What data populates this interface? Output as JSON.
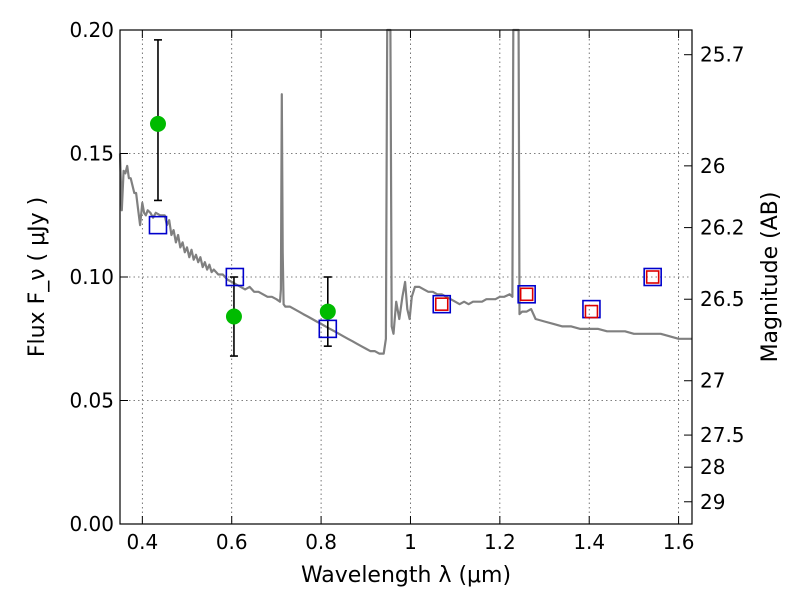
{
  "chart_data": {
    "type": "scatter",
    "xlabel": "Wavelength  λ (μm)",
    "ylabel_left": "Flux  F_ν  ( μJy )",
    "ylabel_right": "Magnitude (AB)",
    "xlim": [
      0.35,
      1.63
    ],
    "ylim": [
      0.0,
      0.2
    ],
    "grid": true,
    "x_ticks": [
      0.4,
      0.6,
      0.8,
      1.0,
      1.2,
      1.4,
      1.6
    ],
    "x_tick_labels": [
      "0.4",
      "0.6",
      "0.8",
      "1",
      "1.2",
      "1.4",
      "1.6"
    ],
    "y_ticks": [
      0.0,
      0.05,
      0.1,
      0.15,
      0.2
    ],
    "y_tick_labels": [
      "0.00",
      "0.05",
      "0.10",
      "0.15",
      "0.20"
    ],
    "right_ticks": [
      {
        "mag": "25.7",
        "flux": 0.19
      },
      {
        "mag": "26",
        "flux": 0.145
      },
      {
        "mag": "26.2",
        "flux": 0.12
      },
      {
        "mag": "26.5",
        "flux": 0.091
      },
      {
        "mag": "27",
        "flux": 0.058
      },
      {
        "mag": "27.5",
        "flux": 0.036
      },
      {
        "mag": "28",
        "flux": 0.023
      },
      {
        "mag": "29",
        "flux": 0.009
      }
    ],
    "series": [
      {
        "name": "model_sed",
        "kind": "line",
        "color": "#808080",
        "points": [
          [
            0.35,
            0.15
          ],
          [
            0.354,
            0.127
          ],
          [
            0.358,
            0.143
          ],
          [
            0.362,
            0.142
          ],
          [
            0.366,
            0.145
          ],
          [
            0.37,
            0.14
          ],
          [
            0.374,
            0.14
          ],
          [
            0.378,
            0.137
          ],
          [
            0.382,
            0.134
          ],
          [
            0.386,
            0.134
          ],
          [
            0.39,
            0.128
          ],
          [
            0.395,
            0.121
          ],
          [
            0.4,
            0.13
          ],
          [
            0.404,
            0.126
          ],
          [
            0.408,
            0.125
          ],
          [
            0.412,
            0.127
          ],
          [
            0.418,
            0.126
          ],
          [
            0.424,
            0.124
          ],
          [
            0.43,
            0.126
          ],
          [
            0.44,
            0.125
          ],
          [
            0.45,
            0.125
          ],
          [
            0.455,
            0.121
          ],
          [
            0.46,
            0.123
          ],
          [
            0.465,
            0.117
          ],
          [
            0.47,
            0.119
          ],
          [
            0.475,
            0.114
          ],
          [
            0.48,
            0.117
          ],
          [
            0.485,
            0.112
          ],
          [
            0.49,
            0.114
          ],
          [
            0.495,
            0.11
          ],
          [
            0.5,
            0.112
          ],
          [
            0.505,
            0.108
          ],
          [
            0.51,
            0.111
          ],
          [
            0.515,
            0.107
          ],
          [
            0.52,
            0.109
          ],
          [
            0.525,
            0.106
          ],
          [
            0.53,
            0.108
          ],
          [
            0.535,
            0.104
          ],
          [
            0.54,
            0.106
          ],
          [
            0.545,
            0.103
          ],
          [
            0.55,
            0.105
          ],
          [
            0.555,
            0.102
          ],
          [
            0.56,
            0.103
          ],
          [
            0.57,
            0.101
          ],
          [
            0.58,
            0.101
          ],
          [
            0.59,
            0.099
          ],
          [
            0.6,
            0.098
          ],
          [
            0.61,
            0.097
          ],
          [
            0.62,
            0.096
          ],
          [
            0.63,
            0.095
          ],
          [
            0.64,
            0.096
          ],
          [
            0.65,
            0.094
          ],
          [
            0.66,
            0.094
          ],
          [
            0.67,
            0.093
          ],
          [
            0.68,
            0.092
          ],
          [
            0.69,
            0.092
          ],
          [
            0.7,
            0.091
          ],
          [
            0.708,
            0.09
          ],
          [
            0.71,
            0.095
          ],
          [
            0.712,
            0.174
          ],
          [
            0.714,
            0.11
          ],
          [
            0.716,
            0.089
          ],
          [
            0.72,
            0.088
          ],
          [
            0.73,
            0.088
          ],
          [
            0.74,
            0.087
          ],
          [
            0.75,
            0.086
          ],
          [
            0.76,
            0.085
          ],
          [
            0.77,
            0.084
          ],
          [
            0.78,
            0.083
          ],
          [
            0.79,
            0.082
          ],
          [
            0.8,
            0.081
          ],
          [
            0.81,
            0.08
          ],
          [
            0.82,
            0.079
          ],
          [
            0.83,
            0.078
          ],
          [
            0.84,
            0.077
          ],
          [
            0.85,
            0.076
          ],
          [
            0.86,
            0.075
          ],
          [
            0.87,
            0.074
          ],
          [
            0.88,
            0.073
          ],
          [
            0.89,
            0.072
          ],
          [
            0.9,
            0.071
          ],
          [
            0.91,
            0.07
          ],
          [
            0.92,
            0.07
          ],
          [
            0.93,
            0.069
          ],
          [
            0.94,
            0.069
          ],
          [
            0.945,
            0.075
          ],
          [
            0.948,
            0.2
          ],
          [
            0.955,
            0.2
          ],
          [
            0.958,
            0.08
          ],
          [
            0.962,
            0.077
          ],
          [
            0.968,
            0.09
          ],
          [
            0.975,
            0.083
          ],
          [
            0.982,
            0.092
          ],
          [
            0.988,
            0.098
          ],
          [
            0.993,
            0.087
          ],
          [
            0.998,
            0.083
          ],
          [
            1.003,
            0.092
          ],
          [
            1.01,
            0.096
          ],
          [
            1.02,
            0.096
          ],
          [
            1.03,
            0.095
          ],
          [
            1.04,
            0.094
          ],
          [
            1.05,
            0.094
          ],
          [
            1.06,
            0.093
          ],
          [
            1.07,
            0.093
          ],
          [
            1.08,
            0.092
          ],
          [
            1.09,
            0.091
          ],
          [
            1.1,
            0.09
          ],
          [
            1.11,
            0.089
          ],
          [
            1.12,
            0.09
          ],
          [
            1.13,
            0.089
          ],
          [
            1.14,
            0.09
          ],
          [
            1.15,
            0.09
          ],
          [
            1.16,
            0.09
          ],
          [
            1.17,
            0.091
          ],
          [
            1.18,
            0.091
          ],
          [
            1.19,
            0.091
          ],
          [
            1.2,
            0.092
          ],
          [
            1.21,
            0.092
          ],
          [
            1.222,
            0.093
          ],
          [
            1.228,
            0.092
          ],
          [
            1.23,
            0.2
          ],
          [
            1.24,
            0.2
          ],
          [
            1.242,
            0.2
          ],
          [
            1.244,
            0.085
          ],
          [
            1.25,
            0.086
          ],
          [
            1.26,
            0.086
          ],
          [
            1.27,
            0.087
          ],
          [
            1.28,
            0.083
          ],
          [
            1.3,
            0.082
          ],
          [
            1.32,
            0.081
          ],
          [
            1.34,
            0.08
          ],
          [
            1.36,
            0.08
          ],
          [
            1.38,
            0.079
          ],
          [
            1.4,
            0.079
          ],
          [
            1.42,
            0.079
          ],
          [
            1.44,
            0.078
          ],
          [
            1.46,
            0.078
          ],
          [
            1.48,
            0.078
          ],
          [
            1.5,
            0.077
          ],
          [
            1.52,
            0.077
          ],
          [
            1.54,
            0.077
          ],
          [
            1.56,
            0.077
          ],
          [
            1.58,
            0.076
          ],
          [
            1.6,
            0.075
          ],
          [
            1.62,
            0.075
          ],
          [
            1.63,
            0.075
          ]
        ]
      },
      {
        "name": "observed_photometry",
        "kind": "points_with_errorbars",
        "color": "#00bb00",
        "points": [
          {
            "x": 0.435,
            "y": 0.162,
            "yerr_low": 0.131,
            "yerr_high": 0.196
          },
          {
            "x": 0.605,
            "y": 0.084,
            "yerr_low": 0.068,
            "yerr_high": 0.1
          },
          {
            "x": 0.815,
            "y": 0.086,
            "yerr_low": 0.072,
            "yerr_high": 0.1
          }
        ]
      },
      {
        "name": "model_synthetic_fluxes",
        "kind": "open_squares",
        "color": "#0000cc",
        "points": [
          {
            "x": 0.435,
            "y": 0.121
          },
          {
            "x": 0.607,
            "y": 0.1
          },
          {
            "x": 0.815,
            "y": 0.079
          },
          {
            "x": 1.07,
            "y": 0.089
          },
          {
            "x": 1.26,
            "y": 0.093
          },
          {
            "x": 1.405,
            "y": 0.087
          },
          {
            "x": 1.542,
            "y": 0.1
          }
        ]
      },
      {
        "name": "upper_limits_or_alt_model",
        "kind": "open_squares",
        "color": "#dd0000",
        "points": [
          {
            "x": 1.07,
            "y": 0.089
          },
          {
            "x": 1.26,
            "y": 0.093
          },
          {
            "x": 1.405,
            "y": 0.086
          },
          {
            "x": 1.542,
            "y": 0.1
          }
        ]
      }
    ]
  }
}
